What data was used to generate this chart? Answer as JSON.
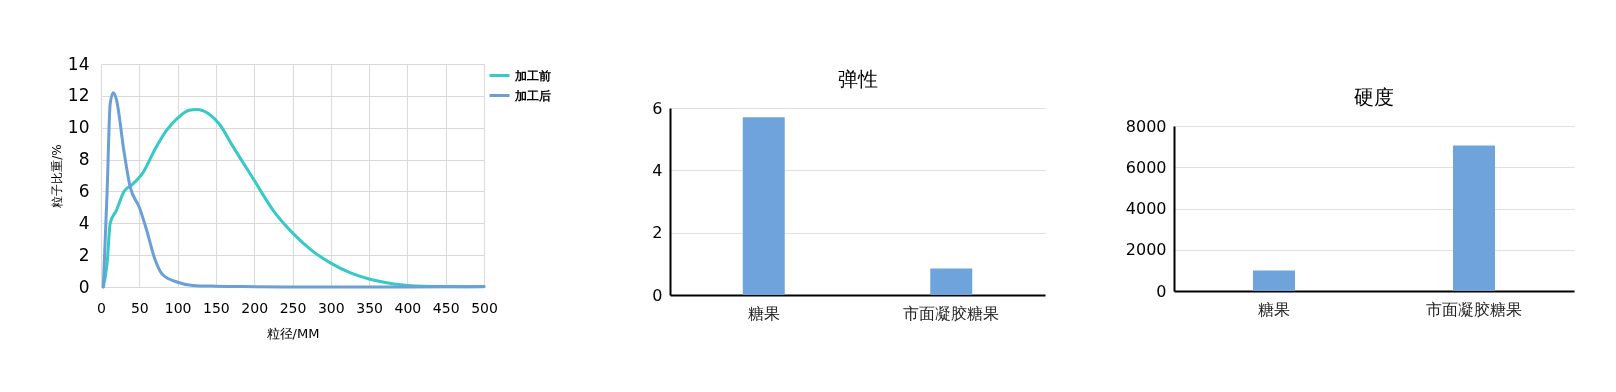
{
  "chart_data": [
    {
      "type": "line",
      "xlabel": "粒径/MM",
      "ylabel": "粒子比重/%",
      "xlim": [
        0,
        500
      ],
      "xticks": [
        0,
        50,
        100,
        150,
        200,
        250,
        300,
        350,
        400,
        450,
        500
      ],
      "ylim": [
        0,
        14
      ],
      "yticks": [
        0,
        2,
        4,
        6,
        8,
        10,
        12,
        14
      ],
      "grid": true,
      "legend": "right",
      "line_style": "solid",
      "series": [
        {
          "name": "加工前",
          "color": "#36c9c6",
          "x": [
            3,
            8,
            12,
            20,
            30,
            40,
            55,
            70,
            85,
            100,
            115,
            125,
            140,
            155,
            170,
            200,
            225,
            250,
            275,
            300,
            325,
            350,
            375,
            400,
            450,
            500
          ],
          "values": [
            0,
            1.5,
            4,
            4.8,
            6,
            6.4,
            7.2,
            8.6,
            9.8,
            10.6,
            11.1,
            11.15,
            10.9,
            10.2,
            9,
            6.7,
            4.8,
            3.4,
            2.3,
            1.5,
            0.9,
            0.5,
            0.25,
            0.1,
            0.03,
            0.02
          ]
        },
        {
          "name": "加工后",
          "color": "#6a9fd8",
          "x": [
            3,
            8,
            12,
            16,
            20,
            30,
            38,
            50,
            60,
            70,
            80,
            100,
            120,
            150,
            200,
            250,
            300,
            400,
            500
          ],
          "values": [
            0,
            6,
            11.5,
            12.2,
            11.8,
            8.5,
            6.3,
            5,
            3.5,
            1.8,
            0.8,
            0.3,
            0.1,
            0.05,
            0.02,
            0,
            0,
            0,
            0.03
          ]
        }
      ]
    },
    {
      "type": "bar",
      "title": "弹性",
      "categories": [
        "糖果",
        "市面凝胶糖果"
      ],
      "values": [
        5.7,
        0.85
      ],
      "color": "#6fa3dc",
      "ylim": [
        0,
        6
      ],
      "yticks": [
        0,
        2,
        4,
        6
      ],
      "grid": "y"
    },
    {
      "type": "bar",
      "title": "硬度",
      "categories": [
        "糖果",
        "市面凝胶糖果"
      ],
      "values": [
        1000,
        7050
      ],
      "color": "#6fa3dc",
      "ylim": [
        0,
        8000
      ],
      "yticks": [
        0,
        2000,
        4000,
        6000,
        8000
      ],
      "grid": "y"
    }
  ]
}
